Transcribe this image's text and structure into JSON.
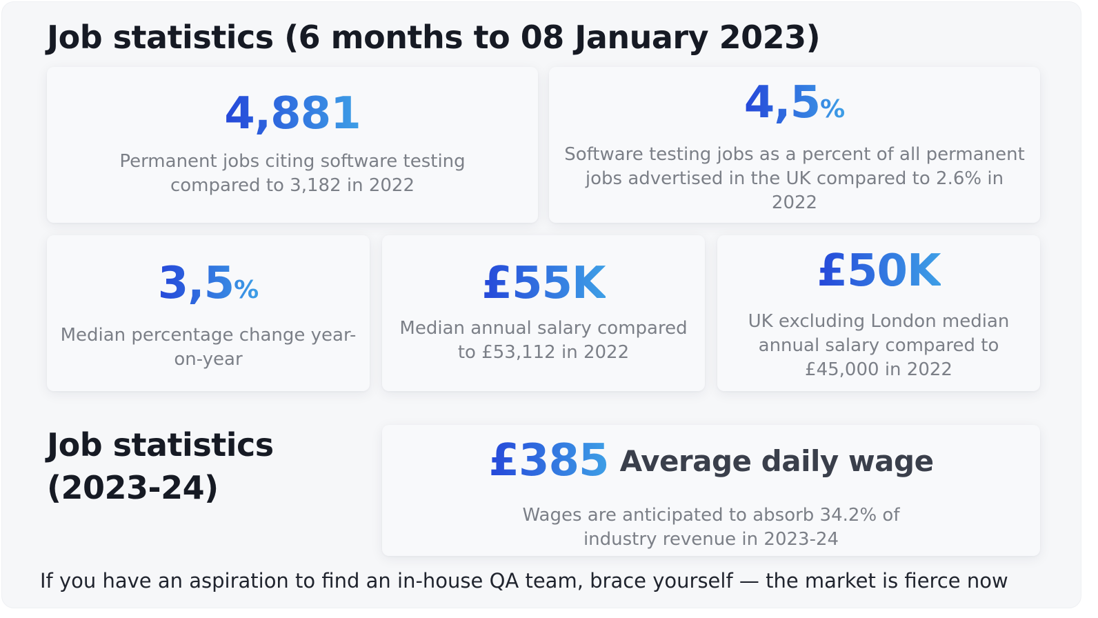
{
  "heading_main": "Job statistics (6 months to 08 January 2023)",
  "heading_sub": "Job statistics (2023-24)",
  "stats": {
    "permanent_jobs": {
      "value": "4,881",
      "description": "Permanent jobs citing software testing compared to 3,182 in 2022"
    },
    "jobs_share": {
      "value": "4,5",
      "unit": "%",
      "description": "Software testing jobs as a percent of all permanent jobs advertised in the UK compared to 2.6% in 2022"
    },
    "median_change": {
      "value": "3,5",
      "unit": "%",
      "description": "Median percentage change year-on-year"
    },
    "median_salary": {
      "value": "£55K",
      "description": "Median annual salary compared to £53,112 in 2022"
    },
    "uk_ex_london_salary": {
      "value": "£50K",
      "description": "UK excluding London median annual salary compared to £45,000 in 2022"
    }
  },
  "daily_wage": {
    "value": "£385",
    "label": "Average daily wage",
    "description": "Wages are anticipated to absorb 34.2% of industry revenue in 2023-24"
  },
  "footer_note": "If you have an aspiration to find an in-house QA team, brace yourself — the market is fierce now",
  "colors": {
    "accent_start": "#2547d9",
    "accent_end": "#3e9fe6",
    "muted_text": "#7b7f87",
    "heading_text": "#161a24"
  }
}
